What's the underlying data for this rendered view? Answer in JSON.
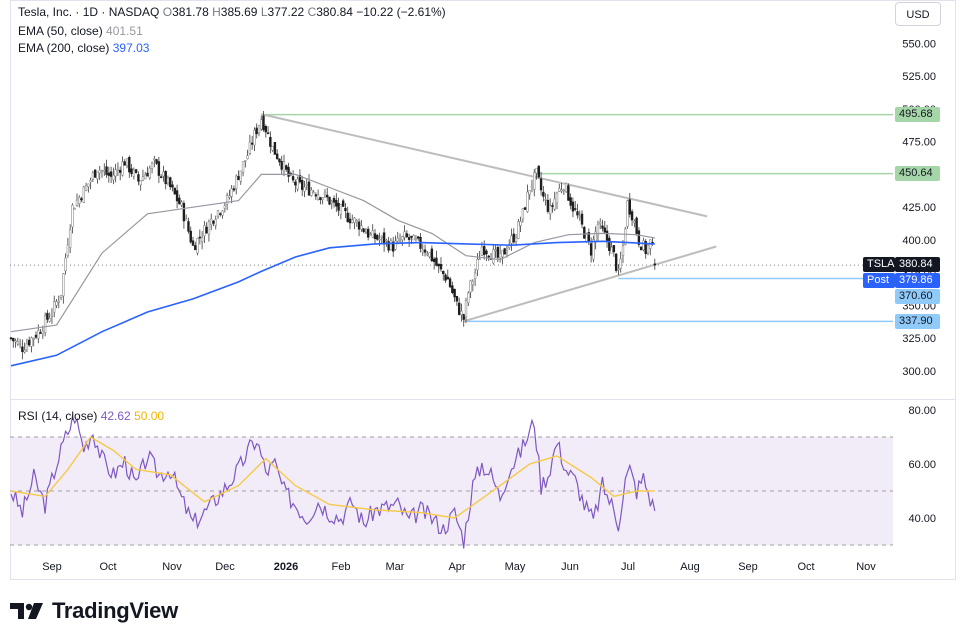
{
  "header": {
    "symbol_line": "Tesla, Inc. · 1D · NASDAQ",
    "ohlc": {
      "open_label": "O",
      "open": "381.78",
      "high_label": "H",
      "high": "385.69",
      "low_label": "L",
      "low": "377.22",
      "close_label": "C",
      "close": "380.84",
      "change": "−10.22 (−2.61%)"
    },
    "ema50": {
      "label": "EMA (50, close)",
      "value": "401.51",
      "color": "#9598a1"
    },
    "ema200": {
      "label": "EMA (200, close)",
      "value": "397.03",
      "color": "#2962ff"
    },
    "currency_button": "USD"
  },
  "price_tags": {
    "symbol": {
      "label": "TSLA",
      "value": "380.84"
    },
    "post": {
      "label": "Post",
      "value": "379.86"
    },
    "levels": [
      "495.68",
      "450.64",
      "370.60",
      "337.90"
    ]
  },
  "rsi_header": {
    "label": "RSI (14, close)",
    "value": "42.62",
    "ma_value": "50.00",
    "line_color": "#7e57c2",
    "ma_color": "#f7c948"
  },
  "brand": {
    "name": "TradingView"
  },
  "chart_data": [
    {
      "type": "candlestick",
      "title": "Tesla, Inc. · 1D · NASDAQ",
      "x_ticks": [
        "Sep",
        "Oct",
        "Nov",
        "Dec",
        "2026",
        "Feb",
        "Mar",
        "Apr",
        "May",
        "Jun",
        "Jul",
        "Aug",
        "Sep",
        "Oct",
        "Nov"
      ],
      "y_ticks": [
        "300.00",
        "325.00",
        "350.00",
        "375.00",
        "400.00",
        "425.00",
        "450.00",
        "475.00",
        "500.00",
        "525.00",
        "550.00"
      ],
      "ylim": [
        290,
        560
      ],
      "last_close": 380.84,
      "key_prices": [
        {
          "t": 0,
          "p": 325
        },
        {
          "t": 5,
          "p": 318
        },
        {
          "t": 12,
          "p": 330
        },
        {
          "t": 18,
          "p": 345
        },
        {
          "t": 22,
          "p": 360
        },
        {
          "t": 25,
          "p": 400
        },
        {
          "t": 27,
          "p": 425
        },
        {
          "t": 33,
          "p": 440
        },
        {
          "t": 38,
          "p": 455
        },
        {
          "t": 44,
          "p": 448
        },
        {
          "t": 50,
          "p": 460
        },
        {
          "t": 56,
          "p": 445
        },
        {
          "t": 63,
          "p": 458
        },
        {
          "t": 70,
          "p": 440
        },
        {
          "t": 75,
          "p": 425
        },
        {
          "t": 80,
          "p": 395
        },
        {
          "t": 84,
          "p": 405
        },
        {
          "t": 90,
          "p": 420
        },
        {
          "t": 95,
          "p": 430
        },
        {
          "t": 100,
          "p": 450
        },
        {
          "t": 104,
          "p": 465
        },
        {
          "t": 107,
          "p": 480
        },
        {
          "t": 110,
          "p": 493
        },
        {
          "t": 112,
          "p": 485
        },
        {
          "t": 115,
          "p": 470
        },
        {
          "t": 118,
          "p": 462
        },
        {
          "t": 123,
          "p": 445
        },
        {
          "t": 128,
          "p": 440
        },
        {
          "t": 133,
          "p": 438
        },
        {
          "t": 138,
          "p": 433
        },
        {
          "t": 143,
          "p": 425
        },
        {
          "t": 148,
          "p": 418
        },
        {
          "t": 153,
          "p": 412
        },
        {
          "t": 158,
          "p": 403
        },
        {
          "t": 163,
          "p": 400
        },
        {
          "t": 168,
          "p": 395
        },
        {
          "t": 173,
          "p": 402
        },
        {
          "t": 178,
          "p": 398
        },
        {
          "t": 183,
          "p": 392
        },
        {
          "t": 188,
          "p": 378
        },
        {
          "t": 192,
          "p": 370
        },
        {
          "t": 196,
          "p": 350
        },
        {
          "t": 199,
          "p": 340
        },
        {
          "t": 201,
          "p": 360
        },
        {
          "t": 204,
          "p": 375
        },
        {
          "t": 207,
          "p": 395
        },
        {
          "t": 211,
          "p": 390
        },
        {
          "t": 215,
          "p": 385
        },
        {
          "t": 218,
          "p": 395
        },
        {
          "t": 222,
          "p": 405
        },
        {
          "t": 225,
          "p": 420
        },
        {
          "t": 228,
          "p": 440
        },
        {
          "t": 231,
          "p": 450
        },
        {
          "t": 234,
          "p": 432
        },
        {
          "t": 237,
          "p": 422
        },
        {
          "t": 240,
          "p": 436
        },
        {
          "t": 243,
          "p": 443
        },
        {
          "t": 247,
          "p": 425
        },
        {
          "t": 251,
          "p": 410
        },
        {
          "t": 255,
          "p": 392
        },
        {
          "t": 258,
          "p": 412
        },
        {
          "t": 262,
          "p": 400
        },
        {
          "t": 265,
          "p": 388
        },
        {
          "t": 267,
          "p": 373
        },
        {
          "t": 269,
          "p": 395
        },
        {
          "t": 271,
          "p": 428
        },
        {
          "t": 273,
          "p": 420
        },
        {
          "t": 276,
          "p": 400
        },
        {
          "t": 279,
          "p": 392
        },
        {
          "t": 281,
          "p": 398
        },
        {
          "t": 282,
          "p": 392
        },
        {
          "t": 283,
          "p": 380.84
        }
      ],
      "ema50": [
        {
          "t": 0,
          "p": 330
        },
        {
          "t": 20,
          "p": 335
        },
        {
          "t": 40,
          "p": 390
        },
        {
          "t": 60,
          "p": 420
        },
        {
          "t": 80,
          "p": 425
        },
        {
          "t": 100,
          "p": 430
        },
        {
          "t": 110,
          "p": 450
        },
        {
          "t": 125,
          "p": 450
        },
        {
          "t": 140,
          "p": 440
        },
        {
          "t": 155,
          "p": 430
        },
        {
          "t": 170,
          "p": 415
        },
        {
          "t": 185,
          "p": 405
        },
        {
          "t": 200,
          "p": 388
        },
        {
          "t": 215,
          "p": 385
        },
        {
          "t": 230,
          "p": 398
        },
        {
          "t": 245,
          "p": 404
        },
        {
          "t": 260,
          "p": 405
        },
        {
          "t": 275,
          "p": 404
        },
        {
          "t": 283,
          "p": 401.51
        }
      ],
      "ema200": [
        {
          "t": 0,
          "p": 304
        },
        {
          "t": 20,
          "p": 312
        },
        {
          "t": 40,
          "p": 330
        },
        {
          "t": 60,
          "p": 345
        },
        {
          "t": 80,
          "p": 355
        },
        {
          "t": 100,
          "p": 368
        },
        {
          "t": 110,
          "p": 376
        },
        {
          "t": 125,
          "p": 387
        },
        {
          "t": 140,
          "p": 394
        },
        {
          "t": 160,
          "p": 397
        },
        {
          "t": 180,
          "p": 398
        },
        {
          "t": 200,
          "p": 397
        },
        {
          "t": 220,
          "p": 396
        },
        {
          "t": 240,
          "p": 398
        },
        {
          "t": 260,
          "p": 399
        },
        {
          "t": 283,
          "p": 397.03
        }
      ],
      "triangle_upper": [
        {
          "t": 110,
          "p": 496
        },
        {
          "t": 306,
          "p": 418
        }
      ],
      "triangle_lower": [
        {
          "t": 199,
          "p": 337.9
        },
        {
          "t": 310,
          "p": 395
        }
      ],
      "horizontal_levels": [
        {
          "from_t": 110,
          "p": 495.68,
          "color": "#a5d6a7"
        },
        {
          "from_t": 231,
          "p": 450.64,
          "color": "#a5d6a7"
        },
        {
          "from_t": 267,
          "p": 370.6,
          "color": "#90caf9"
        },
        {
          "from_t": 199,
          "p": 337.9,
          "color": "#90caf9"
        }
      ]
    },
    {
      "type": "line",
      "title": "RSI (14, close)",
      "y_ticks": [
        "40.00",
        "60.00",
        "80.00"
      ],
      "ylim": [
        20,
        80
      ],
      "band": [
        30,
        70
      ],
      "midline": 50,
      "rsi": [
        {
          "t": 0,
          "p": 50
        },
        {
          "t": 5,
          "p": 42
        },
        {
          "t": 10,
          "p": 55
        },
        {
          "t": 15,
          "p": 45
        },
        {
          "t": 20,
          "p": 60
        },
        {
          "t": 24,
          "p": 70
        },
        {
          "t": 28,
          "p": 78
        },
        {
          "t": 32,
          "p": 66
        },
        {
          "t": 36,
          "p": 72
        },
        {
          "t": 40,
          "p": 62
        },
        {
          "t": 45,
          "p": 56
        },
        {
          "t": 50,
          "p": 61
        },
        {
          "t": 55,
          "p": 52
        },
        {
          "t": 60,
          "p": 63
        },
        {
          "t": 65,
          "p": 56
        },
        {
          "t": 70,
          "p": 58
        },
        {
          "t": 75,
          "p": 47
        },
        {
          "t": 80,
          "p": 38
        },
        {
          "t": 85,
          "p": 42
        },
        {
          "t": 90,
          "p": 47
        },
        {
          "t": 95,
          "p": 52
        },
        {
          "t": 100,
          "p": 58
        },
        {
          "t": 105,
          "p": 66
        },
        {
          "t": 108,
          "p": 69
        },
        {
          "t": 112,
          "p": 57
        },
        {
          "t": 116,
          "p": 60
        },
        {
          "t": 120,
          "p": 50
        },
        {
          "t": 125,
          "p": 45
        },
        {
          "t": 130,
          "p": 40
        },
        {
          "t": 135,
          "p": 46
        },
        {
          "t": 140,
          "p": 42
        },
        {
          "t": 145,
          "p": 40
        },
        {
          "t": 150,
          "p": 46
        },
        {
          "t": 155,
          "p": 38
        },
        {
          "t": 160,
          "p": 43
        },
        {
          "t": 165,
          "p": 44
        },
        {
          "t": 170,
          "p": 45
        },
        {
          "t": 175,
          "p": 39
        },
        {
          "t": 180,
          "p": 43
        },
        {
          "t": 185,
          "p": 40
        },
        {
          "t": 190,
          "p": 36
        },
        {
          "t": 195,
          "p": 42
        },
        {
          "t": 199,
          "p": 32
        },
        {
          "t": 203,
          "p": 52
        },
        {
          "t": 207,
          "p": 60
        },
        {
          "t": 211,
          "p": 56
        },
        {
          "t": 215,
          "p": 48
        },
        {
          "t": 219,
          "p": 58
        },
        {
          "t": 223,
          "p": 63
        },
        {
          "t": 227,
          "p": 70
        },
        {
          "t": 230,
          "p": 76
        },
        {
          "t": 233,
          "p": 52
        },
        {
          "t": 236,
          "p": 56
        },
        {
          "t": 240,
          "p": 68
        },
        {
          "t": 244,
          "p": 58
        },
        {
          "t": 248,
          "p": 54
        },
        {
          "t": 252,
          "p": 45
        },
        {
          "t": 256,
          "p": 39
        },
        {
          "t": 260,
          "p": 52
        },
        {
          "t": 264,
          "p": 45
        },
        {
          "t": 267,
          "p": 38
        },
        {
          "t": 270,
          "p": 54
        },
        {
          "t": 272,
          "p": 58
        },
        {
          "t": 275,
          "p": 50
        },
        {
          "t": 278,
          "p": 55
        },
        {
          "t": 281,
          "p": 47
        },
        {
          "t": 283,
          "p": 42.62
        }
      ],
      "rsi_ma": [
        {
          "t": 0,
          "p": 50
        },
        {
          "t": 15,
          "p": 48
        },
        {
          "t": 25,
          "p": 58
        },
        {
          "t": 35,
          "p": 70
        },
        {
          "t": 45,
          "p": 65
        },
        {
          "t": 55,
          "p": 58
        },
        {
          "t": 70,
          "p": 56
        },
        {
          "t": 85,
          "p": 46
        },
        {
          "t": 100,
          "p": 52
        },
        {
          "t": 112,
          "p": 62
        },
        {
          "t": 125,
          "p": 52
        },
        {
          "t": 140,
          "p": 45
        },
        {
          "t": 160,
          "p": 43
        },
        {
          "t": 180,
          "p": 42
        },
        {
          "t": 195,
          "p": 40
        },
        {
          "t": 205,
          "p": 46
        },
        {
          "t": 215,
          "p": 52
        },
        {
          "t": 228,
          "p": 60
        },
        {
          "t": 240,
          "p": 63
        },
        {
          "t": 255,
          "p": 55
        },
        {
          "t": 265,
          "p": 48
        },
        {
          "t": 275,
          "p": 50
        },
        {
          "t": 283,
          "p": 50
        }
      ]
    }
  ]
}
